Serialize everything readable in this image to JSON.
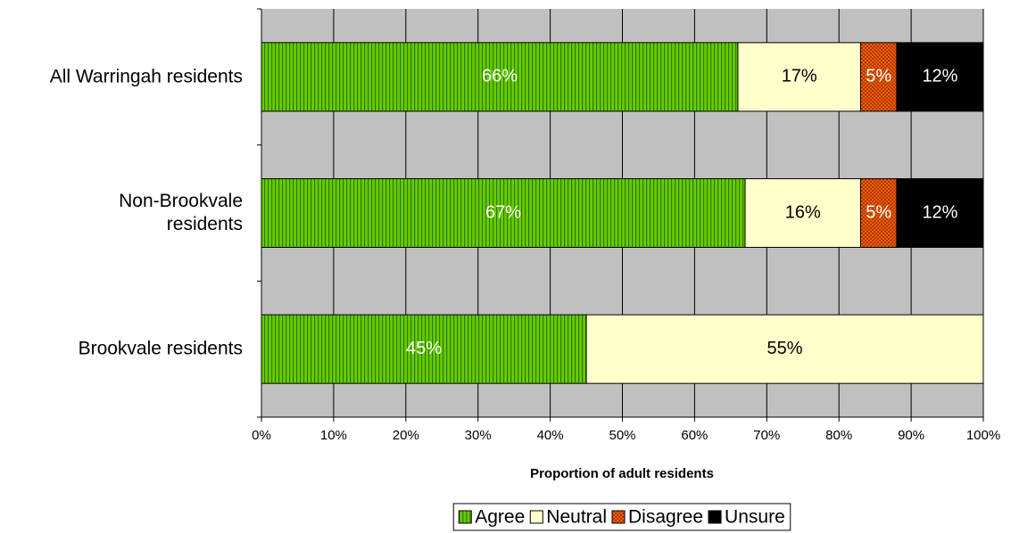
{
  "chart_data": {
    "type": "stacked-bar-horizontal",
    "categories": [
      "All Warringah residents",
      "Non-Brookvale\nresidents",
      "Brookvale residents"
    ],
    "series": [
      {
        "name": "Agree",
        "color": "#66cc00",
        "values": [
          66,
          67,
          45
        ],
        "value_labels": [
          "66%",
          "67%",
          "45%"
        ]
      },
      {
        "name": "Neutral",
        "color": "#ffffcc",
        "values": [
          17,
          16,
          55
        ],
        "value_labels": [
          "17%",
          "16%",
          "55%"
        ]
      },
      {
        "name": "Disagree",
        "color": "#ff6600",
        "values": [
          5,
          5,
          null
        ],
        "value_labels": [
          "5%",
          "5%",
          null
        ]
      },
      {
        "name": "Unsure",
        "color": "#000000",
        "values": [
          12,
          12,
          null
        ],
        "value_labels": [
          "12%",
          "12%",
          null
        ]
      }
    ],
    "xlim": [
      0,
      100
    ],
    "xticks": [
      {
        "value": 0,
        "label": "0%"
      },
      {
        "value": 10,
        "label": "10%"
      },
      {
        "value": 20,
        "label": "20%"
      },
      {
        "value": 30,
        "label": "30%"
      },
      {
        "value": 40,
        "label": "40%"
      },
      {
        "value": 50,
        "label": "50%"
      },
      {
        "value": 60,
        "label": "60%"
      },
      {
        "value": 70,
        "label": "70%"
      },
      {
        "value": 80,
        "label": "80%"
      },
      {
        "value": 90,
        "label": "90%"
      },
      {
        "value": 100,
        "label": "100%"
      }
    ],
    "xlabel": "Proportion of adult residents",
    "grid": true,
    "legend": "bottom"
  }
}
